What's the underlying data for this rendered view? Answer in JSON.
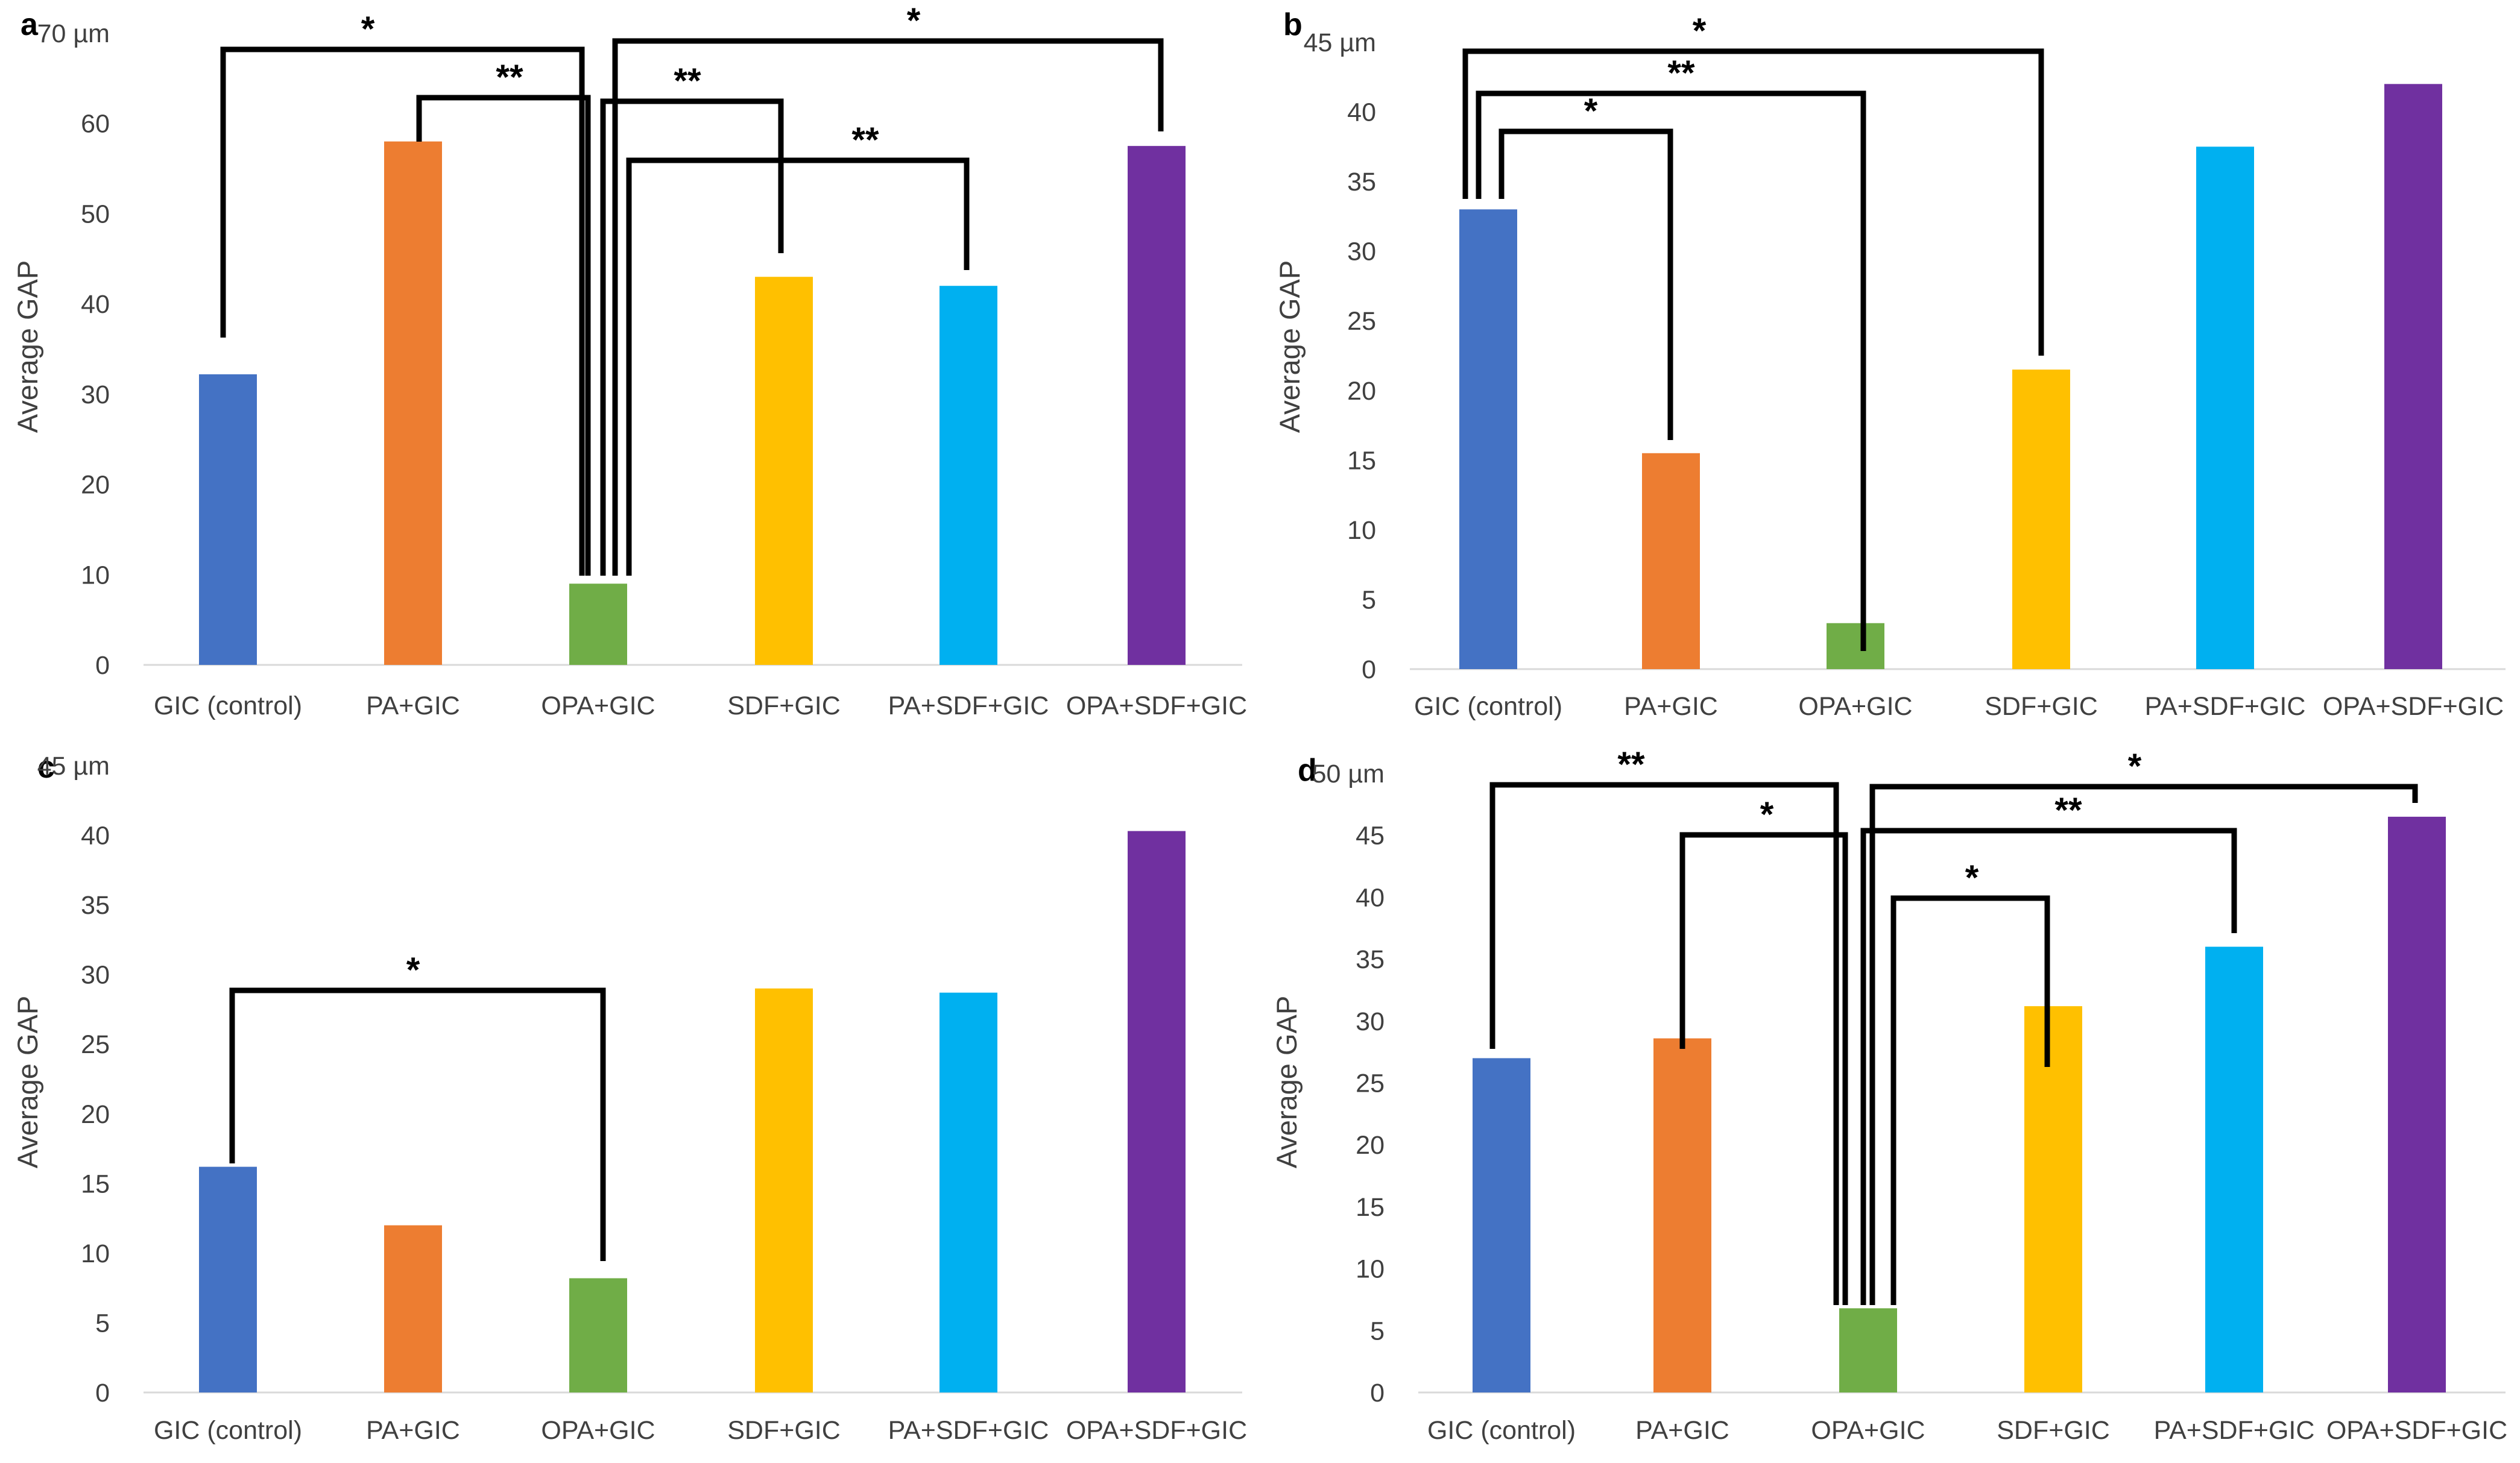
{
  "chart_data": [
    {
      "panel": "a",
      "type": "bar",
      "unit": "µm",
      "ylabel": "Average GAP",
      "ylim": [
        0,
        70
      ],
      "ytick_step": 10,
      "categories": [
        "GIC (control)",
        "PA+GIC",
        "OPA+GIC",
        "SDF+GIC",
        "PA+SDF+GIC",
        "OPA+SDF+GIC"
      ],
      "values": [
        32.2,
        58,
        9,
        43,
        42,
        57.5
      ],
      "colors": [
        "#4472c4",
        "#ed7d31",
        "#70ad47",
        "#ffc000",
        "#00b0f0",
        "#7030a0"
      ],
      "significance": [
        {
          "from": 0,
          "to": 2,
          "label": "*"
        },
        {
          "from": 1,
          "to": 2,
          "label": "**"
        },
        {
          "from": 2,
          "to": 5,
          "label": "*"
        },
        {
          "from": 2,
          "to": 3,
          "label": "**"
        },
        {
          "from": 2,
          "to": 4,
          "label": "**"
        }
      ]
    },
    {
      "panel": "b",
      "type": "bar",
      "unit": "µm",
      "ylabel": "Average GAP",
      "ylim": [
        0,
        45
      ],
      "ytick_step": 5,
      "categories": [
        "GIC (control)",
        "PA+GIC",
        "OPA+GIC",
        "SDF+GIC",
        "PA+SDF+GIC",
        "OPA+SDF+GIC"
      ],
      "values": [
        33,
        15.5,
        3.3,
        21.5,
        37.5,
        42
      ],
      "colors": [
        "#4472c4",
        "#ed7d31",
        "#70ad47",
        "#ffc000",
        "#00b0f0",
        "#7030a0"
      ],
      "significance": [
        {
          "from": 0,
          "to": 3,
          "label": "*"
        },
        {
          "from": 0,
          "to": 2,
          "label": "**"
        },
        {
          "from": 0,
          "to": 1,
          "label": "*"
        }
      ]
    },
    {
      "panel": "c",
      "type": "bar",
      "unit": "µm",
      "ylabel": "Average GAP",
      "ylim": [
        0,
        45
      ],
      "ytick_step": 5,
      "categories": [
        "GIC (control)",
        "PA+GIC",
        "OPA+GIC",
        "SDF+GIC",
        "PA+SDF+GIC",
        "OPA+SDF+GIC"
      ],
      "values": [
        16.2,
        12,
        8.2,
        29,
        28.7,
        40.3
      ],
      "colors": [
        "#4472c4",
        "#ed7d31",
        "#70ad47",
        "#ffc000",
        "#00b0f0",
        "#7030a0"
      ],
      "significance": [
        {
          "from": 0,
          "to": 2,
          "label": "*"
        }
      ]
    },
    {
      "panel": "d",
      "type": "bar",
      "unit": "µm",
      "ylabel": "Average GAP",
      "ylim": [
        0,
        50
      ],
      "ytick_step": 5,
      "categories": [
        "GIC (control)",
        "PA+GIC",
        "OPA+GIC",
        "SDF+GIC",
        "PA+SDF+GIC",
        "OPA+SDF+GIC"
      ],
      "values": [
        27,
        28.6,
        6.8,
        31.2,
        36,
        46.5
      ],
      "colors": [
        "#4472c4",
        "#ed7d31",
        "#70ad47",
        "#ffc000",
        "#00b0f0",
        "#7030a0"
      ],
      "significance": [
        {
          "from": 0,
          "to": 2,
          "label": "**"
        },
        {
          "from": 1,
          "to": 2,
          "label": "*"
        },
        {
          "from": 2,
          "to": 5,
          "label": "*"
        },
        {
          "from": 2,
          "to": 4,
          "label": "**"
        },
        {
          "from": 2,
          "to": 3,
          "label": "*"
        }
      ]
    }
  ]
}
